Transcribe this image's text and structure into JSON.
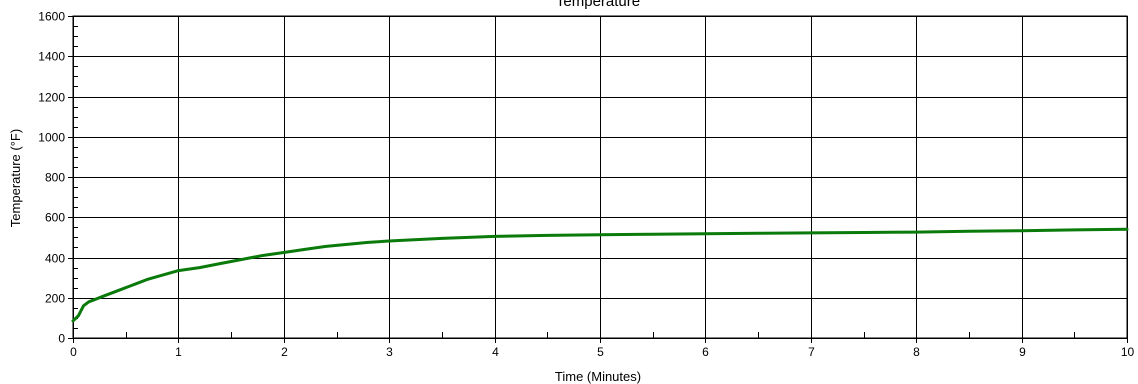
{
  "chart_data": {
    "type": "line",
    "title": "Temperature",
    "xlabel": "Time (Minutes)",
    "ylabel": "Temperature (°F)",
    "xlim": [
      0,
      10
    ],
    "ylim": [
      0,
      1600
    ],
    "x_ticks": [
      0,
      1,
      2,
      3,
      4,
      5,
      6,
      7,
      8,
      9,
      10
    ],
    "y_ticks": [
      0,
      200,
      400,
      600,
      800,
      1000,
      1200,
      1400,
      1600
    ],
    "x_tick_labels": [
      "0",
      "1",
      "2",
      "3",
      "4",
      "5",
      "6",
      "7",
      "8",
      "9",
      "10"
    ],
    "y_tick_labels": [
      "0",
      "200",
      "400",
      "600",
      "800",
      "1000",
      "1200",
      "1400",
      "1600"
    ],
    "grid": true,
    "legend": "none",
    "series": [
      {
        "color": "#0a7a0a",
        "x": [
          0,
          0.05,
          0.1,
          0.15,
          0.2,
          0.3,
          0.4,
          0.5,
          0.6,
          0.7,
          0.8,
          0.9,
          1.0,
          1.2,
          1.4,
          1.6,
          1.8,
          2.0,
          2.2,
          2.4,
          2.6,
          2.8,
          3.0,
          3.5,
          4.0,
          4.5,
          5.0,
          5.5,
          6.0,
          6.5,
          7.0,
          7.5,
          8.0,
          8.5,
          9.0,
          9.5,
          10.0
        ],
        "y": [
          85,
          110,
          160,
          180,
          190,
          210,
          230,
          250,
          270,
          290,
          305,
          320,
          335,
          350,
          370,
          390,
          410,
          425,
          440,
          455,
          465,
          475,
          482,
          495,
          505,
          510,
          513,
          516,
          518,
          520,
          522,
          524,
          526,
          530,
          533,
          537,
          540
        ]
      }
    ]
  },
  "colors": {
    "grid": "#000000",
    "line": "#0a7a0a",
    "background": "#ffffff"
  }
}
